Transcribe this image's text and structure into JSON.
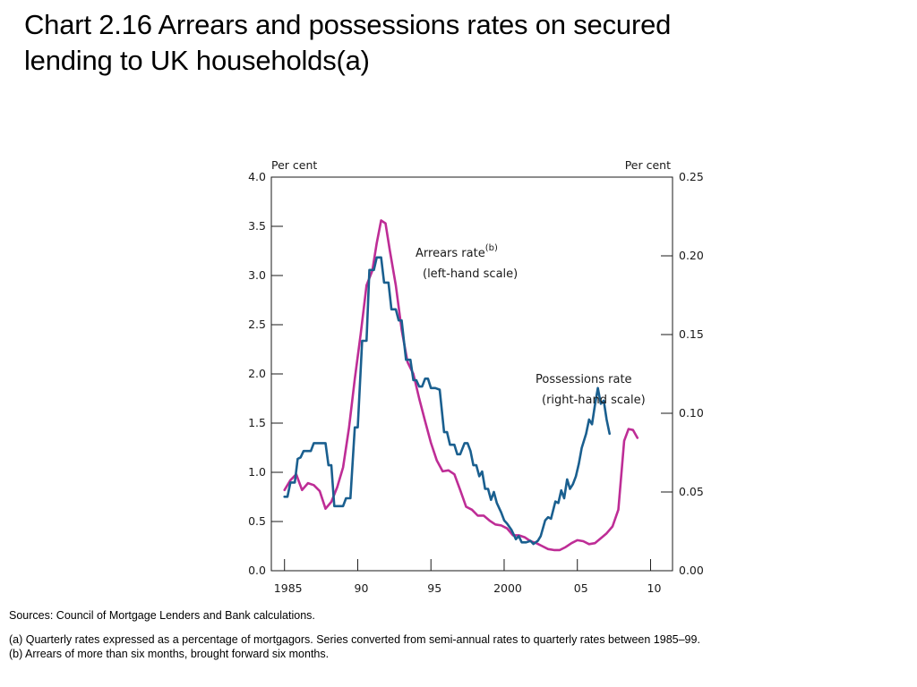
{
  "title": {
    "line1": "Chart 2.16  Arrears and possessions rates on secured",
    "line2": "lending to UK households(a)"
  },
  "chart_data": {
    "type": "line",
    "left_axis": {
      "unit_label": "Per cent",
      "ylim": [
        0.0,
        4.0
      ],
      "ticks": [
        "0.0",
        "0.5",
        "1.0",
        "1.5",
        "2.0",
        "2.5",
        "3.0",
        "3.5",
        "4.0"
      ]
    },
    "right_axis": {
      "unit_label": "Per cent",
      "ylim": [
        0.0,
        0.25
      ],
      "ticks": [
        "0.00",
        "0.05",
        "0.10",
        "0.15",
        "0.20",
        "0.25"
      ]
    },
    "x_axis": {
      "xlim": [
        1984.1,
        2011.5
      ],
      "tick_years": [
        1985,
        1990,
        1995,
        2000,
        2005,
        2010
      ],
      "tick_labels": [
        "1985",
        "90",
        "95",
        "2000",
        "05",
        "10"
      ]
    },
    "grid": false,
    "annotations": {
      "arrears_label": "Arrears rate",
      "arrears_superscript": "(b)",
      "arrears_scale": "(left-hand scale)",
      "possessions_label": "Possessions rate",
      "possessions_scale": "(right-hand scale)"
    },
    "series": [
      {
        "key": "arrears",
        "axis": "left",
        "color": "#be2d96",
        "points": [
          [
            1985.0,
            0.82
          ],
          [
            1985.4,
            0.92
          ],
          [
            1985.8,
            0.98
          ],
          [
            1986.2,
            0.82
          ],
          [
            1986.6,
            0.89
          ],
          [
            1987.0,
            0.87
          ],
          [
            1987.4,
            0.81
          ],
          [
            1987.8,
            0.63
          ],
          [
            1988.2,
            0.7
          ],
          [
            1988.6,
            0.85
          ],
          [
            1989.0,
            1.05
          ],
          [
            1989.4,
            1.45
          ],
          [
            1989.8,
            1.95
          ],
          [
            1990.2,
            2.4
          ],
          [
            1990.6,
            2.9
          ],
          [
            1991.0,
            3.05
          ],
          [
            1991.3,
            3.33
          ],
          [
            1991.6,
            3.56
          ],
          [
            1991.9,
            3.53
          ],
          [
            1992.2,
            3.25
          ],
          [
            1992.6,
            2.9
          ],
          [
            1993.0,
            2.45
          ],
          [
            1993.4,
            2.12
          ],
          [
            1993.8,
            2.0
          ],
          [
            1994.2,
            1.75
          ],
          [
            1994.6,
            1.52
          ],
          [
            1995.0,
            1.3
          ],
          [
            1995.4,
            1.12
          ],
          [
            1995.8,
            1.01
          ],
          [
            1996.2,
            1.02
          ],
          [
            1996.6,
            0.98
          ],
          [
            1997.0,
            0.82
          ],
          [
            1997.4,
            0.65
          ],
          [
            1997.8,
            0.62
          ],
          [
            1998.2,
            0.56
          ],
          [
            1998.6,
            0.56
          ],
          [
            1999.0,
            0.51
          ],
          [
            1999.4,
            0.47
          ],
          [
            1999.8,
            0.46
          ],
          [
            2000.2,
            0.43
          ],
          [
            2000.6,
            0.36
          ],
          [
            2001.0,
            0.36
          ],
          [
            2001.4,
            0.34
          ],
          [
            2001.8,
            0.3
          ],
          [
            2002.2,
            0.28
          ],
          [
            2002.6,
            0.25
          ],
          [
            2003.0,
            0.22
          ],
          [
            2003.4,
            0.21
          ],
          [
            2003.8,
            0.21
          ],
          [
            2004.2,
            0.24
          ],
          [
            2004.6,
            0.28
          ],
          [
            2005.0,
            0.31
          ],
          [
            2005.4,
            0.3
          ],
          [
            2005.8,
            0.27
          ],
          [
            2006.2,
            0.28
          ],
          [
            2006.6,
            0.33
          ],
          [
            2007.0,
            0.38
          ],
          [
            2007.4,
            0.45
          ],
          [
            2007.8,
            0.62
          ],
          [
            2008.2,
            1.32
          ],
          [
            2008.5,
            1.44
          ],
          [
            2008.8,
            1.43
          ],
          [
            2009.1,
            1.35
          ]
        ]
      },
      {
        "key": "possessions",
        "axis": "right",
        "color": "#1a5f8f",
        "points": [
          [
            1985.0,
            0.047
          ],
          [
            1985.2,
            0.047
          ],
          [
            1985.4,
            0.056
          ],
          [
            1985.7,
            0.056
          ],
          [
            1985.9,
            0.071
          ],
          [
            1986.1,
            0.072
          ],
          [
            1986.3,
            0.076
          ],
          [
            1986.5,
            0.076
          ],
          [
            1986.8,
            0.076
          ],
          [
            1987.0,
            0.081
          ],
          [
            1987.5,
            0.081
          ],
          [
            1987.8,
            0.081
          ],
          [
            1988.0,
            0.067
          ],
          [
            1988.2,
            0.067
          ],
          [
            1988.4,
            0.041
          ],
          [
            1988.7,
            0.041
          ],
          [
            1989.0,
            0.041
          ],
          [
            1989.2,
            0.046
          ],
          [
            1989.5,
            0.046
          ],
          [
            1989.8,
            0.091
          ],
          [
            1990.0,
            0.091
          ],
          [
            1990.3,
            0.146
          ],
          [
            1990.6,
            0.146
          ],
          [
            1990.8,
            0.191
          ],
          [
            1991.1,
            0.191
          ],
          [
            1991.3,
            0.199
          ],
          [
            1991.6,
            0.199
          ],
          [
            1991.8,
            0.183
          ],
          [
            1992.1,
            0.183
          ],
          [
            1992.3,
            0.166
          ],
          [
            1992.6,
            0.166
          ],
          [
            1992.8,
            0.159
          ],
          [
            1993.0,
            0.159
          ],
          [
            1993.3,
            0.134
          ],
          [
            1993.6,
            0.134
          ],
          [
            1993.8,
            0.121
          ],
          [
            1994.0,
            0.121
          ],
          [
            1994.2,
            0.117
          ],
          [
            1994.4,
            0.117
          ],
          [
            1994.6,
            0.122
          ],
          [
            1994.8,
            0.122
          ],
          [
            1995.0,
            0.116
          ],
          [
            1995.3,
            0.116
          ],
          [
            1995.6,
            0.115
          ],
          [
            1995.9,
            0.088
          ],
          [
            1996.1,
            0.088
          ],
          [
            1996.3,
            0.08
          ],
          [
            1996.6,
            0.08
          ],
          [
            1996.8,
            0.074
          ],
          [
            1997.0,
            0.074
          ],
          [
            1997.3,
            0.081
          ],
          [
            1997.5,
            0.081
          ],
          [
            1997.7,
            0.076
          ],
          [
            1997.9,
            0.067
          ],
          [
            1998.1,
            0.067
          ],
          [
            1998.3,
            0.06
          ],
          [
            1998.5,
            0.063
          ],
          [
            1998.7,
            0.052
          ],
          [
            1998.9,
            0.052
          ],
          [
            1999.1,
            0.045
          ],
          [
            1999.3,
            0.05
          ],
          [
            1999.5,
            0.043
          ],
          [
            1999.8,
            0.037
          ],
          [
            2000.0,
            0.032
          ],
          [
            2000.2,
            0.03
          ],
          [
            2000.5,
            0.026
          ],
          [
            2000.8,
            0.02
          ],
          [
            2001.0,
            0.022
          ],
          [
            2001.2,
            0.018
          ],
          [
            2001.5,
            0.018
          ],
          [
            2001.8,
            0.019
          ],
          [
            2002.0,
            0.017
          ],
          [
            2002.3,
            0.019
          ],
          [
            2002.5,
            0.022
          ],
          [
            2002.8,
            0.032
          ],
          [
            2003.0,
            0.034
          ],
          [
            2003.2,
            0.033
          ],
          [
            2003.5,
            0.044
          ],
          [
            2003.7,
            0.043
          ],
          [
            2003.9,
            0.051
          ],
          [
            2004.1,
            0.046
          ],
          [
            2004.3,
            0.058
          ],
          [
            2004.5,
            0.052
          ],
          [
            2004.7,
            0.055
          ],
          [
            2004.9,
            0.06
          ],
          [
            2005.1,
            0.068
          ],
          [
            2005.3,
            0.078
          ],
          [
            2005.6,
            0.087
          ],
          [
            2005.8,
            0.096
          ],
          [
            2006.0,
            0.093
          ],
          [
            2006.2,
            0.105
          ],
          [
            2006.4,
            0.116
          ],
          [
            2006.6,
            0.106
          ],
          [
            2006.8,
            0.108
          ],
          [
            2007.0,
            0.096
          ],
          [
            2007.2,
            0.087
          ]
        ]
      }
    ]
  },
  "notes": {
    "sources": "Sources:  Council of Mortgage Lenders and Bank calculations.",
    "note_a": "(a)  Quarterly rates expressed as a percentage of mortgagors.  Series converted from semi-annual rates to quarterly rates between 1985–99.",
    "note_b": "(b)  Arrears of more than six months, brought forward six months."
  }
}
